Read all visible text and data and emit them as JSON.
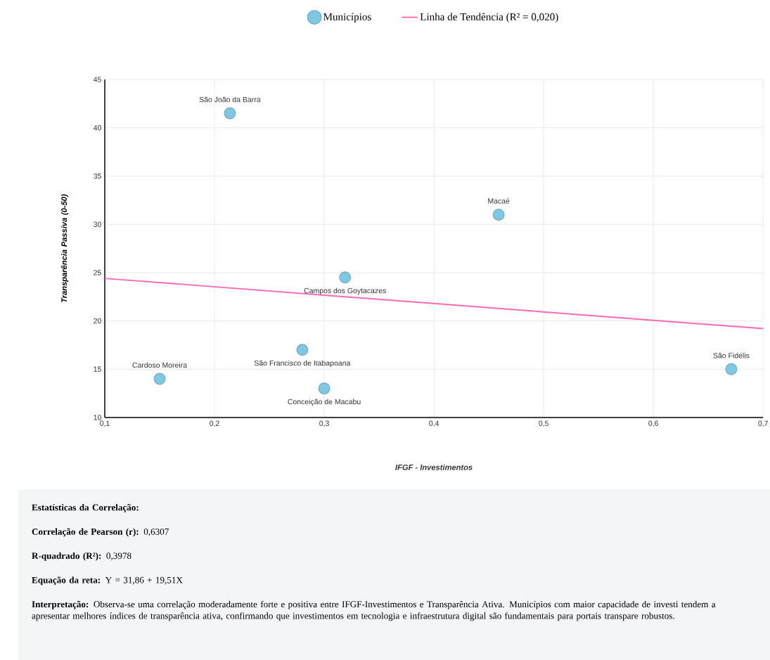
{
  "chart_data": {
    "type": "scatter",
    "xlabel": "IFGF - Investimentos",
    "ylabel": "Transparência Passiva (0-50)",
    "series": [
      {
        "name": "Municípios",
        "color": "#7ec8e3",
        "marker": "circle",
        "x": [
          0.15,
          0.214,
          0.28,
          0.3,
          0.319,
          0.459,
          0.671
        ],
        "values": [
          14,
          41.5,
          17,
          13,
          24.5,
          31,
          15
        ]
      },
      {
        "name": "Linha de Tendência (R² = 0,020)",
        "type": "line",
        "color": "#ff69b4",
        "marker": "none",
        "line_style": "solid",
        "x": [
          0.1,
          0.7
        ],
        "values": [
          24.4,
          19.2
        ]
      }
    ],
    "xlim": [
      0.1,
      0.7
    ],
    "ylim": [
      10,
      45
    ],
    "xticks": [
      {
        "value": 0.1,
        "label": "0,1"
      },
      {
        "value": 0.2,
        "label": "0,2"
      },
      {
        "value": 0.3,
        "label": "0,3"
      },
      {
        "value": 0.4,
        "label": "0,4"
      },
      {
        "value": 0.5,
        "label": "0,5"
      },
      {
        "value": 0.6,
        "label": "0,6"
      },
      {
        "value": 0.7,
        "label": "0,7"
      }
    ],
    "yticks": [
      10,
      15,
      20,
      25,
      30,
      35,
      40,
      45
    ],
    "grid": true,
    "legend": "top",
    "annotations": [
      {
        "text": "Cardoso Moreira",
        "x": 0.15,
        "y": 14
      },
      {
        "text": "São João da Barra",
        "x": 0.214,
        "y": 41.5
      },
      {
        "text": "São Francisco de Itabapoana",
        "x": 0.28,
        "y": 17
      },
      {
        "text": "Conceição de Macabu",
        "x": 0.3,
        "y": 13
      },
      {
        "text": "Campos dos Goytacazes",
        "x": 0.319,
        "y": 24.5
      },
      {
        "text": "Macaé",
        "x": 0.459,
        "y": 31
      },
      {
        "text": "São Fidélis",
        "x": 0.671,
        "y": 15
      },
      "**Estatísticas da Correlação:**",
      "**Correlação de Pearson (r):** 0,6307",
      "**R-quadrado (R²):** 0,3978",
      "**Equação da reta:** Y = 31,86 + 19,51X",
      "**Interpretação:** Observa-se uma correlação moderadamente forte e positiva entre IFGF-Investimentos e Transparência Ativa. Municípios com maior capacidade de investi tendem a apresentar melhores índices de transparência ativa, confirmando que investimentos em tecnologia e infraestrutura digital são fundamentais para portais transpare robustos."
    ]
  }
}
